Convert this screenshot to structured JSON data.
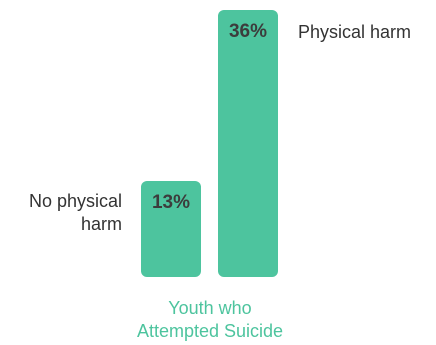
{
  "chart_data": {
    "type": "bar",
    "categories": [
      "No physical harm",
      "Physical harm"
    ],
    "values": [
      13,
      36
    ],
    "value_labels": [
      "13%",
      "36%"
    ],
    "category_labels": [
      [
        "No physical",
        "harm"
      ],
      [
        "Physical harm"
      ]
    ],
    "xlabel": "Youth who Attempted Suicide",
    "xlabel_lines": [
      "Youth who",
      "Attempted Suicide"
    ],
    "ylim": [
      0,
      36
    ],
    "grid": false,
    "legend": "none",
    "bar_color": "#4dc49e",
    "xlabel_color": "#4dc49e"
  }
}
